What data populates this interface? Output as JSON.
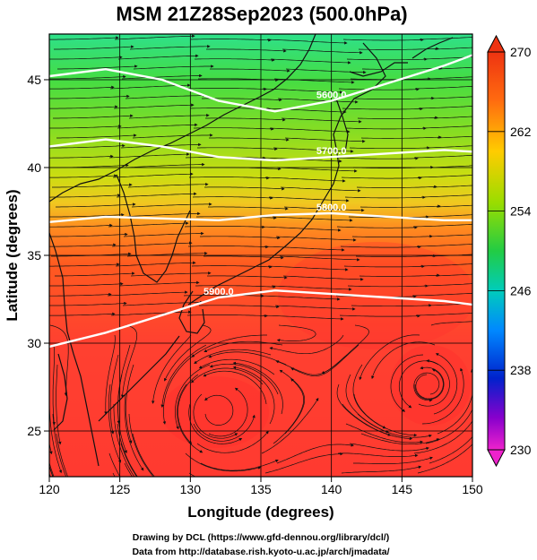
{
  "title": "MSM 21Z28Sep2023 (500.0hPa)",
  "xlabel": "Longitude (degrees)",
  "ylabel": "Latitude  (degrees)",
  "x_ticks": [
    "120",
    "125",
    "130",
    "135",
    "140",
    "145",
    "150"
  ],
  "y_ticks": [
    "25",
    "30",
    "35",
    "40",
    "45"
  ],
  "colorbar_ticks": [
    "270",
    "262",
    "254",
    "246",
    "238",
    "230"
  ],
  "credits": {
    "line1": "Drawing by DCL (https://www.gfd-dennou.org/library/dcl/)",
    "line2": "Data from http://database.rish.kyoto-u.ac.jp/arch/jmadata/"
  },
  "contour_labels": [
    "5600.0",
    "5700.0",
    "5800.0",
    "5900.0"
  ],
  "map_data": {
    "field": "temperature (K) shading with wind streamlines and geopotential height contours",
    "lon_range": [
      120,
      150
    ],
    "lat_range": [
      22.4,
      47.6
    ],
    "colorbar_range": [
      230,
      270
    ],
    "height_contours": [
      {
        "label": "5600.0",
        "points": [
          [
            120,
            45.2
          ],
          [
            124,
            45.6
          ],
          [
            128,
            45.0
          ],
          [
            132,
            43.8
          ],
          [
            136,
            43.2
          ],
          [
            140,
            43.8
          ],
          [
            144,
            44.8
          ],
          [
            148,
            45.8
          ],
          [
            150,
            46.4
          ]
        ]
      },
      {
        "label": "5700.0",
        "points": [
          [
            120,
            41.2
          ],
          [
            124,
            41.6
          ],
          [
            128,
            41.2
          ],
          [
            132,
            40.6
          ],
          [
            136,
            40.4
          ],
          [
            140,
            40.6
          ],
          [
            144,
            40.8
          ],
          [
            148,
            41.0
          ],
          [
            150,
            40.9
          ]
        ]
      },
      {
        "label": "5800.0",
        "points": [
          [
            120,
            36.9
          ],
          [
            124,
            37.2
          ],
          [
            128,
            37.1
          ],
          [
            132,
            37.0
          ],
          [
            136,
            37.3
          ],
          [
            140,
            37.4
          ],
          [
            144,
            37.2
          ],
          [
            148,
            37.0
          ],
          [
            150,
            37.0
          ]
        ]
      },
      {
        "label": "5900.0",
        "points": [
          [
            120,
            29.8
          ],
          [
            124,
            30.6
          ],
          [
            128,
            31.6
          ],
          [
            132,
            32.6
          ],
          [
            136,
            33.0
          ],
          [
            140,
            32.8
          ],
          [
            144,
            32.6
          ],
          [
            148,
            32.4
          ],
          [
            150,
            32.2
          ]
        ]
      }
    ],
    "gradient_stops": [
      {
        "lat": 47.6,
        "color": "#2ee08a"
      },
      {
        "lat": 45.0,
        "color": "#44dd44"
      },
      {
        "lat": 42.0,
        "color": "#88dd22"
      },
      {
        "lat": 39.5,
        "color": "#ccdd11"
      },
      {
        "lat": 38.0,
        "color": "#f0c820"
      },
      {
        "lat": 36.5,
        "color": "#ff8a20"
      },
      {
        "lat": 34.5,
        "color": "#ff5a20"
      },
      {
        "lat": 30.0,
        "color": "#ff4030"
      },
      {
        "lat": 22.4,
        "color": "#ff3a30"
      }
    ]
  }
}
